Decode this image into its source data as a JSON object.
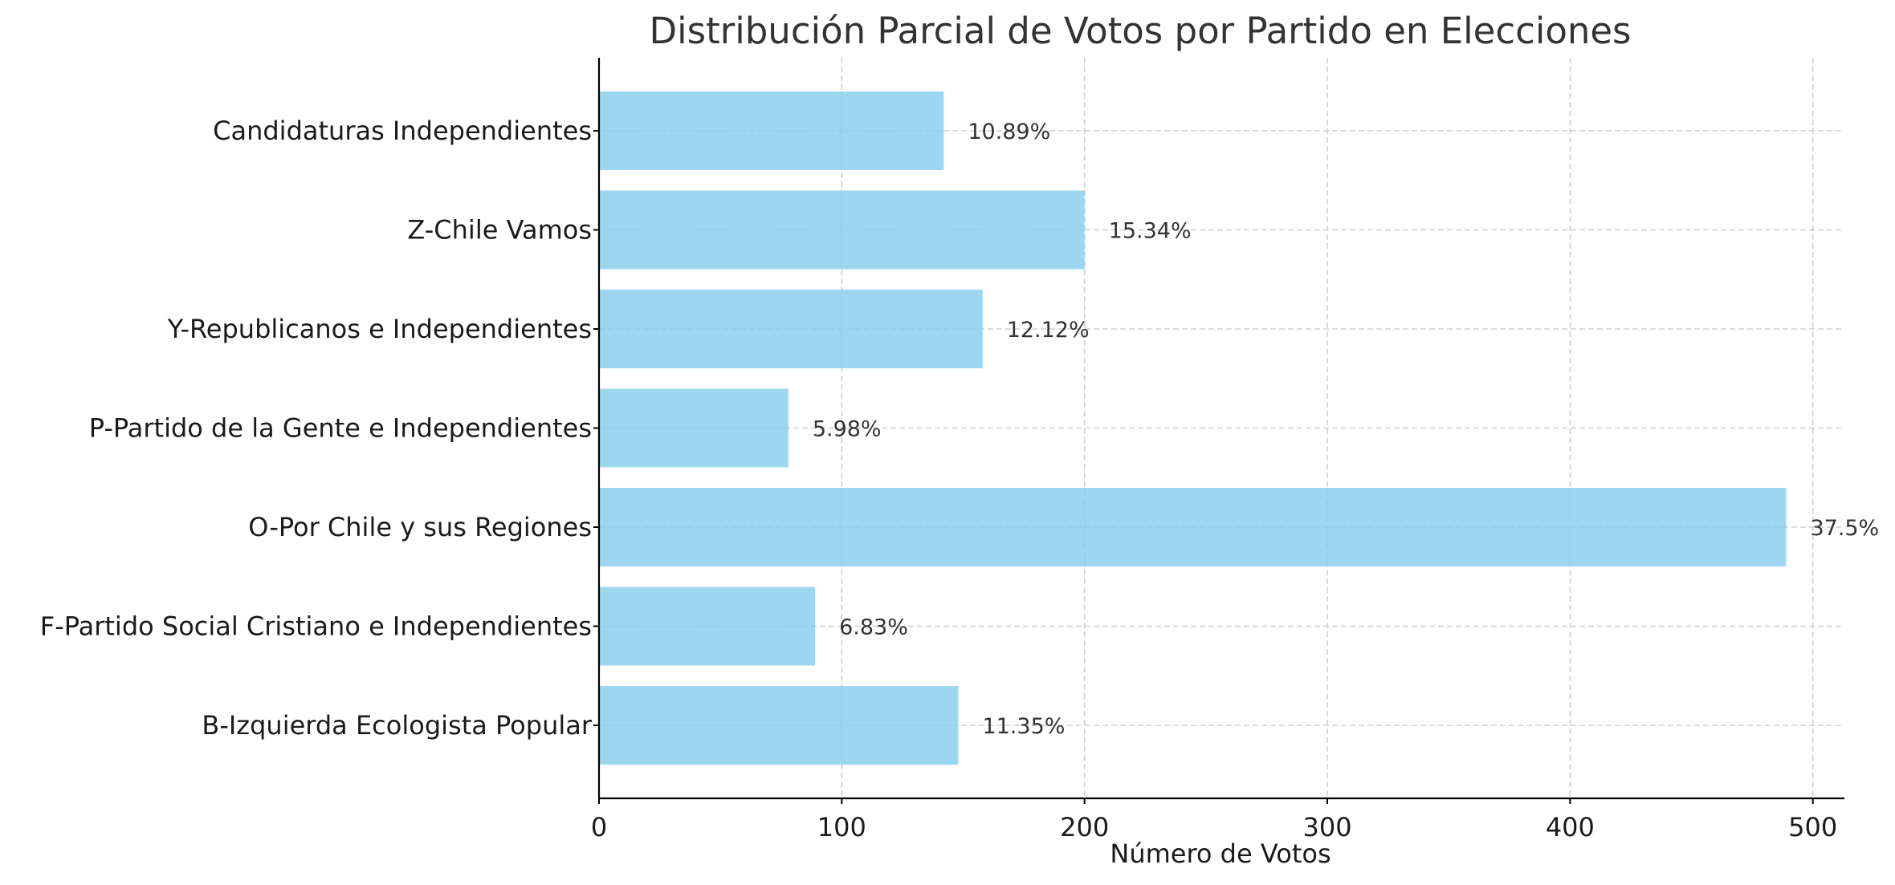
{
  "chart_data": {
    "type": "bar",
    "orientation": "horizontal",
    "title": "Distribución Parcial de Votos por Partido en Elecciones",
    "xlabel": "Número de Votos",
    "ylabel": "",
    "xlim": [
      0,
      513
    ],
    "xticks": [
      "0",
      "100",
      "200",
      "300",
      "400",
      "500"
    ],
    "xtick_values": [
      0,
      100,
      200,
      300,
      400,
      500
    ],
    "grid": true,
    "bar_color": "#87CEEB",
    "categories": [
      "Candidaturas Independientes",
      "Z-Chile Vamos",
      "Y-Republicanos e Independientes",
      "P-Partido de la Gente e Independientes",
      "O-Por Chile y sus Regiones",
      "F-Partido Social Cristiano e Independientes",
      "B-Izquierda Ecologista Popular"
    ],
    "values": [
      142,
      200,
      158,
      78,
      489,
      89,
      148
    ],
    "data_labels": [
      "10.89%",
      "15.34%",
      "12.12%",
      "5.98%",
      "37.5%",
      "6.83%",
      "11.35%"
    ]
  }
}
